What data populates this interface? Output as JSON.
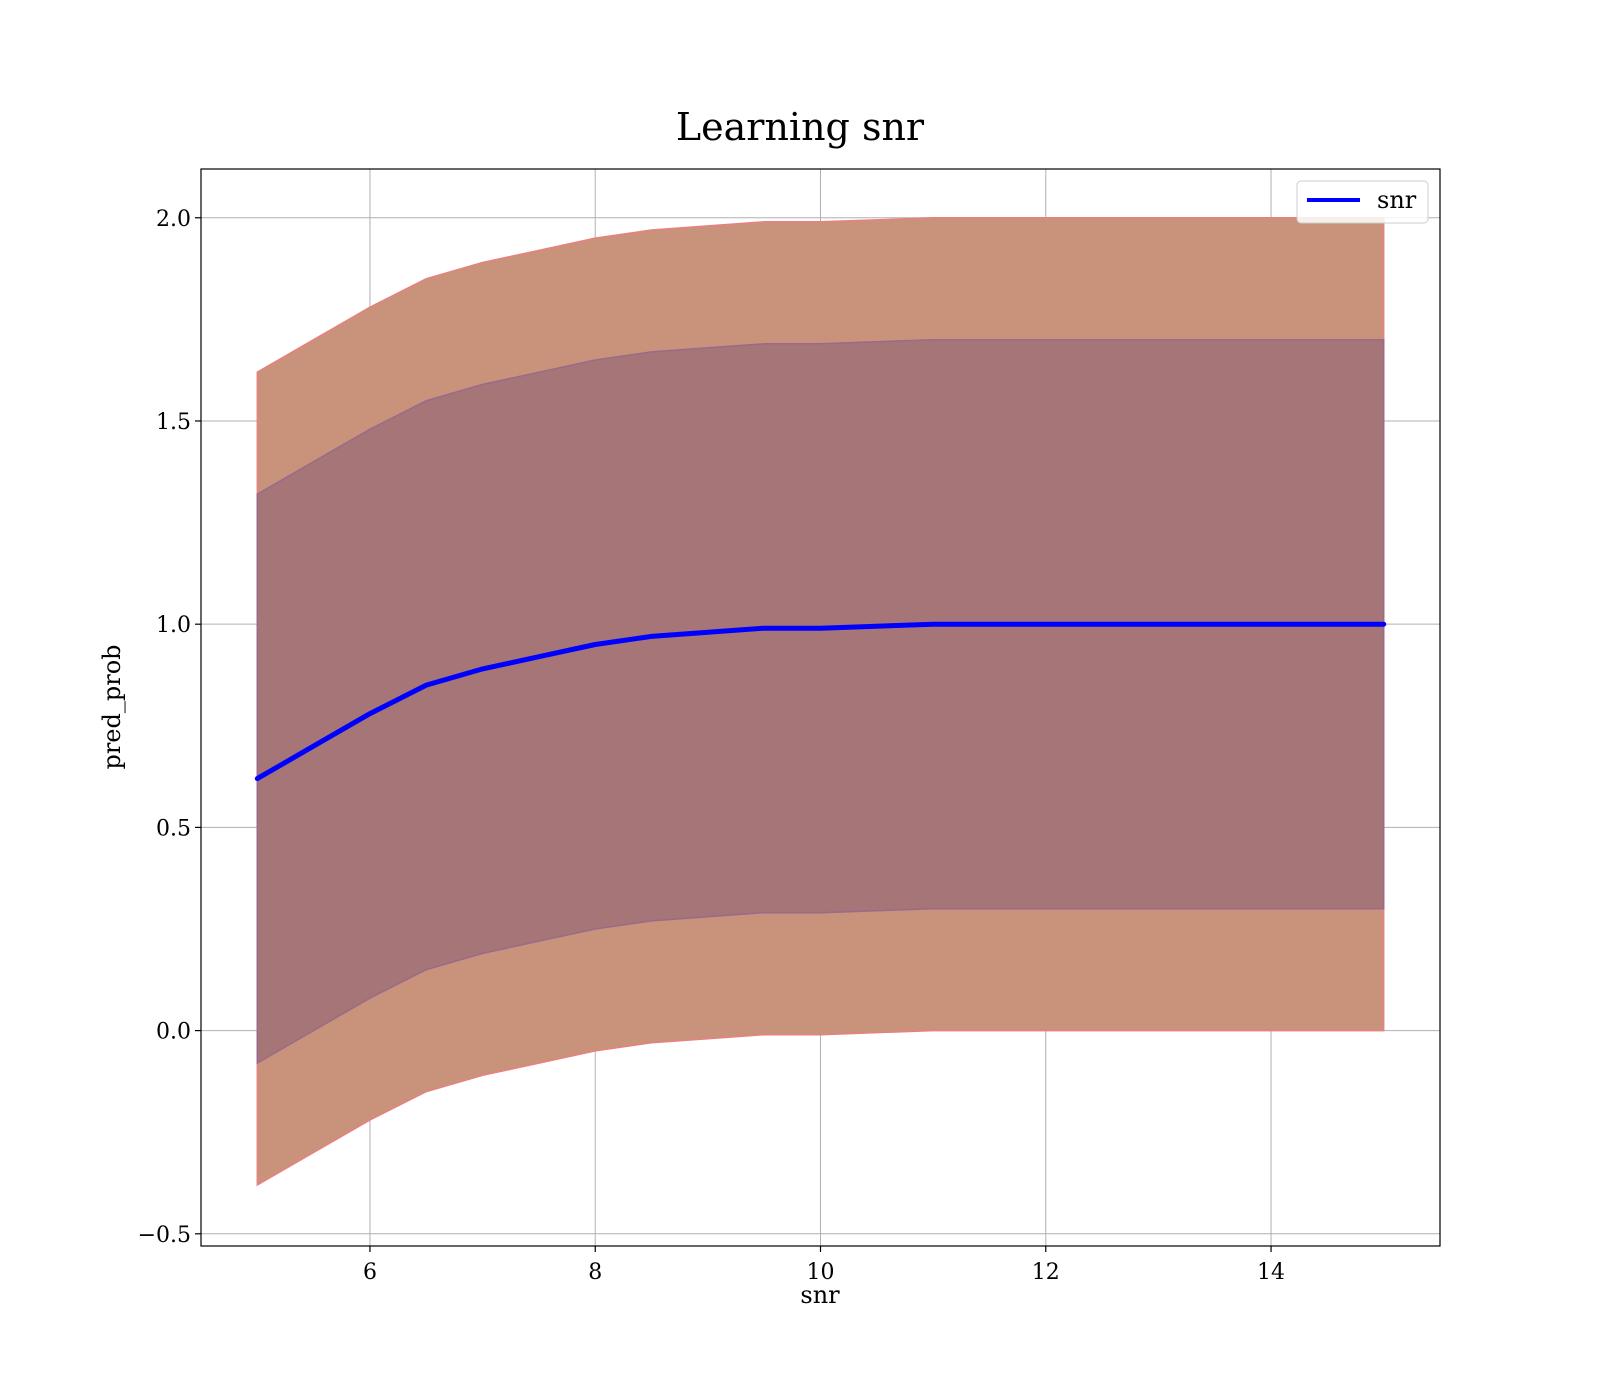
{
  "chart_data": {
    "type": "line",
    "title": "Learning snr",
    "xlabel": "snr",
    "ylabel": "pred_prob",
    "xlim": [
      4.5,
      15.5
    ],
    "ylim": [
      -0.53,
      2.12
    ],
    "x_ticks": [
      6,
      8,
      10,
      12,
      14
    ],
    "y_ticks": [
      -0.5,
      0.0,
      0.5,
      1.0,
      1.5,
      2.0
    ],
    "x_tick_labels": [
      "6",
      "8",
      "10",
      "12",
      "14"
    ],
    "y_tick_labels": [
      "−0.5",
      "0.0",
      "0.5",
      "1.0",
      "1.5",
      "2.0"
    ],
    "grid": true,
    "legend": {
      "position": "top-right",
      "entries": [
        {
          "label": "snr",
          "color": "#0000ff"
        }
      ]
    },
    "series": [
      {
        "name": "snr",
        "color": "#0000ff",
        "x": [
          5.0,
          5.5,
          6.0,
          6.5,
          7.0,
          7.5,
          8.0,
          8.5,
          9.0,
          9.5,
          10.0,
          11.0,
          12.0,
          13.0,
          14.0,
          15.0
        ],
        "y": [
          0.62,
          0.7,
          0.78,
          0.85,
          0.89,
          0.92,
          0.95,
          0.97,
          0.98,
          0.99,
          0.99,
          1.0,
          1.0,
          1.0,
          1.0,
          1.0
        ]
      }
    ],
    "bands": [
      {
        "color": "#c8937a",
        "edge_color": "#e88080",
        "x": [
          5.0,
          5.5,
          6.0,
          6.5,
          7.0,
          7.5,
          8.0,
          8.5,
          9.0,
          9.5,
          10.0,
          11.0,
          12.0,
          13.0,
          14.0,
          15.0
        ],
        "lower": [
          -0.38,
          -0.3,
          -0.22,
          -0.15,
          -0.11,
          -0.08,
          -0.05,
          -0.03,
          -0.02,
          -0.01,
          -0.01,
          0.0,
          0.0,
          0.0,
          0.0,
          0.0
        ],
        "upper": [
          1.62,
          1.7,
          1.78,
          1.85,
          1.89,
          1.92,
          1.95,
          1.97,
          1.98,
          1.99,
          1.99,
          2.0,
          2.0,
          2.0,
          2.0,
          2.0
        ]
      },
      {
        "color": "#a07078",
        "edge_color": "#9a6a8a",
        "x": [
          5.0,
          5.5,
          6.0,
          6.5,
          7.0,
          7.5,
          8.0,
          8.5,
          9.0,
          9.5,
          10.0,
          11.0,
          12.0,
          13.0,
          14.0,
          15.0
        ],
        "lower": [
          -0.08,
          0.0,
          0.08,
          0.15,
          0.19,
          0.22,
          0.25,
          0.27,
          0.28,
          0.29,
          0.29,
          0.3,
          0.3,
          0.3,
          0.3,
          0.3
        ],
        "upper": [
          1.32,
          1.4,
          1.48,
          1.55,
          1.59,
          1.62,
          1.65,
          1.67,
          1.68,
          1.69,
          1.69,
          1.7,
          1.7,
          1.7,
          1.7,
          1.7
        ]
      }
    ]
  }
}
